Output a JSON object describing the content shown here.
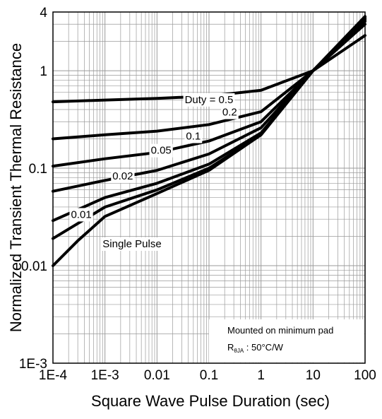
{
  "chart_data": {
    "type": "line",
    "title": "",
    "xlabel": "Square Wave Pulse Duration (sec)",
    "ylabel": "Normalized Transient Thermal Resistance",
    "x_scale": "log",
    "y_scale": "log",
    "xlim": [
      0.0001,
      100
    ],
    "ylim": [
      0.001,
      4
    ],
    "x_ticks": [
      {
        "value": 0.0001,
        "label": "1E-4"
      },
      {
        "value": 0.001,
        "label": "1E-3"
      },
      {
        "value": 0.01,
        "label": "0.01"
      },
      {
        "value": 0.1,
        "label": "0.1"
      },
      {
        "value": 1,
        "label": "1"
      },
      {
        "value": 10,
        "label": "10"
      },
      {
        "value": 100,
        "label": "100"
      }
    ],
    "y_ticks": [
      {
        "value": 0.001,
        "label": "1E-3"
      },
      {
        "value": 0.01,
        "label": "0.01"
      },
      {
        "value": 0.1,
        "label": "0.1"
      },
      {
        "value": 1,
        "label": "1"
      },
      {
        "value": 4,
        "label": "4"
      }
    ],
    "grid": true,
    "series": [
      {
        "name": "0.5",
        "label": "Duty =  0.5",
        "x": [
          0.0001,
          0.001,
          0.01,
          0.1,
          1,
          10,
          100
        ],
        "y": [
          0.48,
          0.5,
          0.52,
          0.55,
          0.63,
          1.0,
          2.3
        ]
      },
      {
        "name": "0.2",
        "label": "0.2",
        "x": [
          0.0001,
          0.001,
          0.01,
          0.1,
          1,
          10,
          100
        ],
        "y": [
          0.2,
          0.22,
          0.24,
          0.28,
          0.38,
          1.0,
          3.0
        ]
      },
      {
        "name": "0.1",
        "label": "0.1",
        "x": [
          0.0001,
          0.001,
          0.01,
          0.1,
          1,
          10,
          100
        ],
        "y": [
          0.105,
          0.125,
          0.145,
          0.19,
          0.3,
          1.0,
          3.2
        ]
      },
      {
        "name": "0.05",
        "label": "0.05",
        "x": [
          0.0001,
          0.001,
          0.01,
          0.1,
          1,
          10,
          100
        ],
        "y": [
          0.058,
          0.075,
          0.095,
          0.14,
          0.26,
          1.0,
          3.3
        ]
      },
      {
        "name": "0.02",
        "label": "0.02",
        "x": [
          0.0001,
          0.001,
          0.01,
          0.1,
          1,
          10,
          100
        ],
        "y": [
          0.029,
          0.05,
          0.07,
          0.11,
          0.23,
          1.0,
          3.4
        ]
      },
      {
        "name": "0.01",
        "label": "0.01",
        "x": [
          0.0001,
          0.001,
          0.01,
          0.1,
          1,
          10,
          100
        ],
        "y": [
          0.019,
          0.04,
          0.06,
          0.1,
          0.22,
          1.0,
          3.5
        ]
      },
      {
        "name": "Single Pulse",
        "label": "Single Pulse",
        "x": [
          0.0001,
          0.0003,
          0.001,
          0.01,
          0.1,
          1,
          10,
          100
        ],
        "y": [
          0.01,
          0.018,
          0.032,
          0.055,
          0.095,
          0.22,
          1.0,
          3.6
        ]
      }
    ],
    "annotations": [
      {
        "text_main": "Mounted on minimum pad",
        "text_r": "R",
        "text_sub": "θJA",
        "text_rest": " : 50°C/W"
      }
    ]
  }
}
